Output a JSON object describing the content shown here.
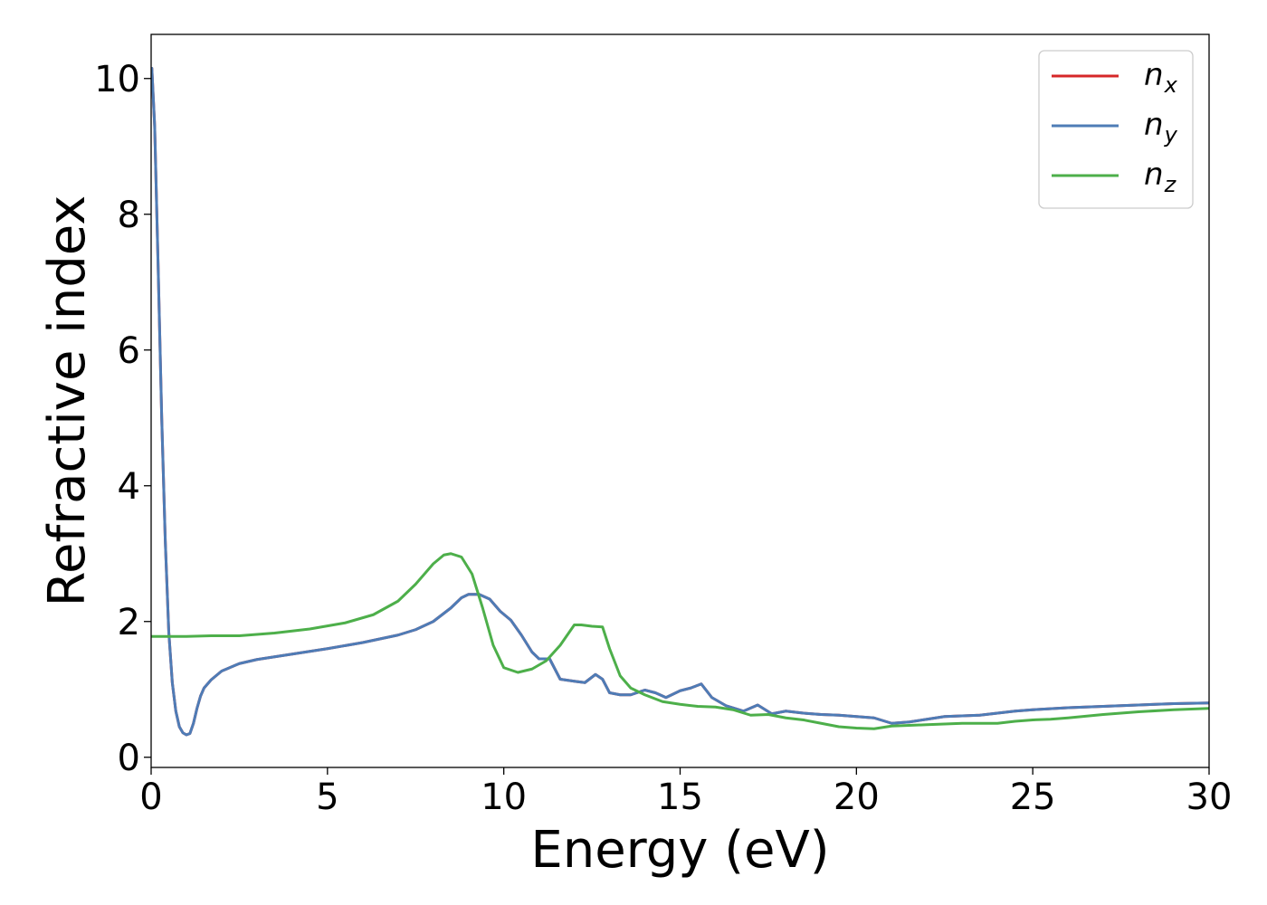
{
  "chart_data": {
    "type": "line",
    "xlabel": "Energy (eV)",
    "ylabel": "Refractive index",
    "xlim": [
      0,
      30
    ],
    "ylim": [
      -0.15,
      10.65
    ],
    "xticks": [
      0,
      5,
      10,
      15,
      20,
      25,
      30
    ],
    "yticks": [
      0,
      2,
      4,
      6,
      8,
      10
    ],
    "xtick_labels": [
      "0",
      "5",
      "10",
      "15",
      "20",
      "25",
      "30"
    ],
    "ytick_labels": [
      "0",
      "2",
      "4",
      "6",
      "8",
      "10"
    ],
    "grid": false,
    "legend_position": "top-right",
    "series": [
      {
        "name": "n_x",
        "legend_main": "n",
        "legend_sub": "x",
        "color": "#d62728",
        "x": [
          0.02,
          0.1,
          0.2,
          0.3,
          0.4,
          0.5,
          0.6,
          0.7,
          0.8,
          0.9,
          1.0,
          1.1,
          1.2,
          1.3,
          1.4,
          1.5,
          1.7,
          2.0,
          2.5,
          3.0,
          4.0,
          5.0,
          6.0,
          7.0,
          7.5,
          8.0,
          8.5,
          8.8,
          9.0,
          9.3,
          9.6,
          9.9,
          10.2,
          10.5,
          10.8,
          11.0,
          11.3,
          11.6,
          12.0,
          12.3,
          12.6,
          12.8,
          13.0,
          13.3,
          13.6,
          14.0,
          14.3,
          14.6,
          15.0,
          15.3,
          15.6,
          15.9,
          16.3,
          16.8,
          17.2,
          17.6,
          18.0,
          18.5,
          19.0,
          19.5,
          20.0,
          20.5,
          21.0,
          21.5,
          22.0,
          22.5,
          23.0,
          23.5,
          24.0,
          24.5,
          25.0,
          26.0,
          27.0,
          28.0,
          29.0,
          30.0
        ],
        "values": [
          10.15,
          9.3,
          7.2,
          5.0,
          3.2,
          1.85,
          1.1,
          0.68,
          0.45,
          0.36,
          0.33,
          0.35,
          0.5,
          0.72,
          0.9,
          1.02,
          1.14,
          1.27,
          1.38,
          1.44,
          1.52,
          1.6,
          1.69,
          1.8,
          1.88,
          2.0,
          2.2,
          2.35,
          2.4,
          2.4,
          2.33,
          2.15,
          2.02,
          1.8,
          1.55,
          1.45,
          1.45,
          1.15,
          1.12,
          1.1,
          1.22,
          1.15,
          0.95,
          0.92,
          0.92,
          0.99,
          0.95,
          0.88,
          0.98,
          1.02,
          1.08,
          0.88,
          0.76,
          0.68,
          0.77,
          0.64,
          0.68,
          0.65,
          0.63,
          0.62,
          0.6,
          0.58,
          0.5,
          0.52,
          0.56,
          0.6,
          0.61,
          0.62,
          0.65,
          0.68,
          0.7,
          0.73,
          0.75,
          0.77,
          0.79,
          0.8
        ]
      },
      {
        "name": "n_y",
        "legend_main": "n",
        "legend_sub": "y",
        "color": "#4e7cb6",
        "x": [
          0.02,
          0.1,
          0.2,
          0.3,
          0.4,
          0.5,
          0.6,
          0.7,
          0.8,
          0.9,
          1.0,
          1.1,
          1.2,
          1.3,
          1.4,
          1.5,
          1.7,
          2.0,
          2.5,
          3.0,
          4.0,
          5.0,
          6.0,
          7.0,
          7.5,
          8.0,
          8.5,
          8.8,
          9.0,
          9.3,
          9.6,
          9.9,
          10.2,
          10.5,
          10.8,
          11.0,
          11.3,
          11.6,
          12.0,
          12.3,
          12.6,
          12.8,
          13.0,
          13.3,
          13.6,
          14.0,
          14.3,
          14.6,
          15.0,
          15.3,
          15.6,
          15.9,
          16.3,
          16.8,
          17.2,
          17.6,
          18.0,
          18.5,
          19.0,
          19.5,
          20.0,
          20.5,
          21.0,
          21.5,
          22.0,
          22.5,
          23.0,
          23.5,
          24.0,
          24.5,
          25.0,
          26.0,
          27.0,
          28.0,
          29.0,
          30.0
        ],
        "values": [
          10.15,
          9.3,
          7.2,
          5.0,
          3.2,
          1.85,
          1.1,
          0.68,
          0.45,
          0.36,
          0.33,
          0.35,
          0.5,
          0.72,
          0.9,
          1.02,
          1.14,
          1.27,
          1.38,
          1.44,
          1.52,
          1.6,
          1.69,
          1.8,
          1.88,
          2.0,
          2.2,
          2.35,
          2.4,
          2.4,
          2.33,
          2.15,
          2.02,
          1.8,
          1.55,
          1.45,
          1.45,
          1.15,
          1.12,
          1.1,
          1.22,
          1.15,
          0.95,
          0.92,
          0.92,
          0.99,
          0.95,
          0.88,
          0.98,
          1.02,
          1.08,
          0.88,
          0.76,
          0.68,
          0.77,
          0.64,
          0.68,
          0.65,
          0.63,
          0.62,
          0.6,
          0.58,
          0.5,
          0.52,
          0.56,
          0.6,
          0.61,
          0.62,
          0.65,
          0.68,
          0.7,
          0.73,
          0.75,
          0.77,
          0.79,
          0.8
        ]
      },
      {
        "name": "n_z",
        "legend_main": "n",
        "legend_sub": "z",
        "color": "#4daf4a",
        "x": [
          0.0,
          1.0,
          1.7,
          2.5,
          3.5,
          4.5,
          5.5,
          6.3,
          7.0,
          7.5,
          8.0,
          8.3,
          8.5,
          8.8,
          9.1,
          9.4,
          9.7,
          10.0,
          10.4,
          10.8,
          11.2,
          11.6,
          12.0,
          12.2,
          12.5,
          12.8,
          13.0,
          13.3,
          13.6,
          14.0,
          14.5,
          15.0,
          15.5,
          16.0,
          16.5,
          17.0,
          17.5,
          18.0,
          18.5,
          19.0,
          19.5,
          20.0,
          20.5,
          21.0,
          21.5,
          22.0,
          22.5,
          23.0,
          23.5,
          24.0,
          24.5,
          25.0,
          25.5,
          26.0,
          27.0,
          28.0,
          29.0,
          30.0
        ],
        "values": [
          1.78,
          1.78,
          1.79,
          1.79,
          1.83,
          1.89,
          1.98,
          2.1,
          2.3,
          2.55,
          2.85,
          2.98,
          3.0,
          2.95,
          2.7,
          2.2,
          1.65,
          1.32,
          1.25,
          1.3,
          1.42,
          1.65,
          1.95,
          1.95,
          1.93,
          1.92,
          1.6,
          1.2,
          1.02,
          0.92,
          0.82,
          0.78,
          0.75,
          0.74,
          0.7,
          0.62,
          0.63,
          0.58,
          0.55,
          0.5,
          0.45,
          0.43,
          0.42,
          0.46,
          0.47,
          0.48,
          0.49,
          0.5,
          0.5,
          0.5,
          0.53,
          0.55,
          0.56,
          0.58,
          0.63,
          0.67,
          0.7,
          0.72
        ]
      }
    ]
  }
}
